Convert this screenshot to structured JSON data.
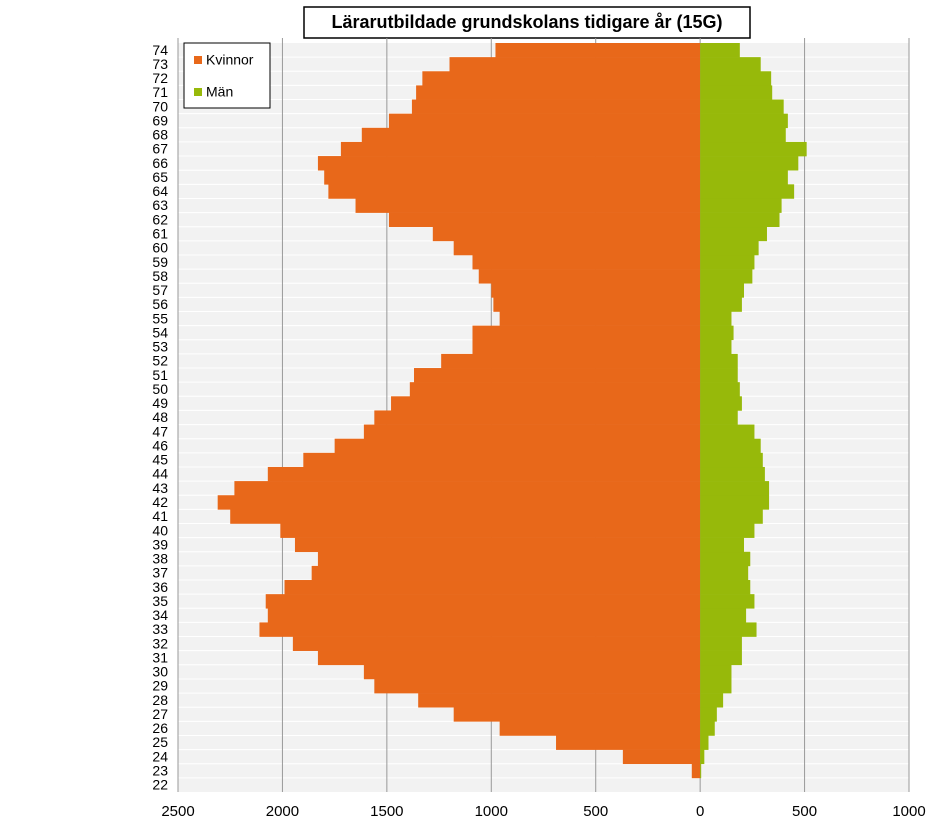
{
  "chart_data": {
    "type": "pyramid",
    "title": "Lärarutbildade grundskolans tidigare år (15G)",
    "categories": [
      "22",
      "23",
      "24",
      "25",
      "26",
      "27",
      "28",
      "29",
      "30",
      "31",
      "32",
      "33",
      "34",
      "35",
      "36",
      "37",
      "38",
      "39",
      "40",
      "41",
      "42",
      "43",
      "44",
      "45",
      "46",
      "47",
      "48",
      "49",
      "50",
      "51",
      "52",
      "53",
      "54",
      "55",
      "56",
      "57",
      "58",
      "59",
      "60",
      "61",
      "62",
      "63",
      "64",
      "65",
      "66",
      "67",
      "68",
      "69",
      "70",
      "71",
      "72",
      "73",
      "74"
    ],
    "series": [
      {
        "name": "Kvinnor",
        "color": "#e8681a",
        "values": [
          0,
          -40,
          -370,
          -690,
          -960,
          -1180,
          -1350,
          -1560,
          -1610,
          -1830,
          -1950,
          -2110,
          -2070,
          -2080,
          -1990,
          -1860,
          -1830,
          -1940,
          -2010,
          -2250,
          -2310,
          -2230,
          -2070,
          -1900,
          -1750,
          -1610,
          -1560,
          -1480,
          -1390,
          -1370,
          -1240,
          -1090,
          -1090,
          -960,
          -990,
          -1000,
          -1060,
          -1090,
          -1180,
          -1280,
          -1490,
          -1650,
          -1780,
          -1800,
          -1830,
          -1720,
          -1620,
          -1490,
          -1380,
          -1360,
          -1330,
          -1200,
          -980
        ]
      },
      {
        "name": "Män",
        "color": "#97b90a",
        "values": [
          0,
          5,
          20,
          40,
          70,
          80,
          110,
          150,
          150,
          200,
          200,
          270,
          220,
          260,
          240,
          230,
          240,
          210,
          260,
          300,
          330,
          330,
          310,
          300,
          290,
          260,
          180,
          200,
          190,
          180,
          180,
          150,
          160,
          150,
          200,
          210,
          250,
          260,
          280,
          320,
          380,
          390,
          450,
          420,
          470,
          510,
          410,
          420,
          400,
          345,
          340,
          290,
          190
        ]
      }
    ],
    "xlim": [
      -2500,
      1000
    ],
    "xticks": [
      {
        "value": -2500,
        "label": "2500"
      },
      {
        "value": -2000,
        "label": "2000"
      },
      {
        "value": -1500,
        "label": "1500"
      },
      {
        "value": -1000,
        "label": "1000"
      },
      {
        "value": -500,
        "label": "500"
      },
      0,
      500,
      1000
    ],
    "grid": true
  }
}
